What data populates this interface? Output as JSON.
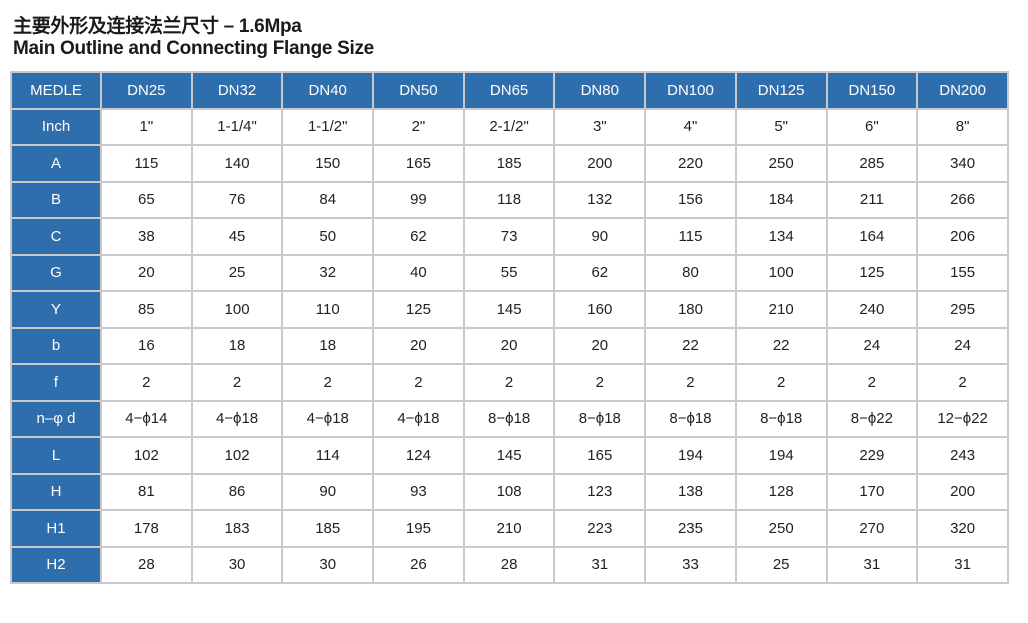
{
  "title_cn": "主要外形及连接法兰尺寸 – 1.6Mpa",
  "title_en": "Main Outline and Connecting Flange Size",
  "colors": {
    "header_bg": "#2f6ead",
    "grid": "#c9c9c9"
  },
  "table": {
    "headers": [
      "MEDLE",
      "DN25",
      "DN32",
      "DN40",
      "DN50",
      "DN65",
      "DN80",
      "DN100",
      "DN125",
      "DN150",
      "DN200"
    ],
    "rows": [
      {
        "label": "Inch",
        "values": [
          "1\"",
          "1-1/4\"",
          "1-1/2\"",
          "2\"",
          "2-1/2\"",
          "3\"",
          "4\"",
          "5\"",
          "6\"",
          "8\""
        ]
      },
      {
        "label": "A",
        "values": [
          "115",
          "140",
          "150",
          "165",
          "185",
          "200",
          "220",
          "250",
          "285",
          "340"
        ]
      },
      {
        "label": "B",
        "values": [
          "65",
          "76",
          "84",
          "99",
          "118",
          "132",
          "156",
          "184",
          "211",
          "266"
        ]
      },
      {
        "label": "C",
        "values": [
          "38",
          "45",
          "50",
          "62",
          "73",
          "90",
          "115",
          "134",
          "164",
          "206"
        ]
      },
      {
        "label": "G",
        "values": [
          "20",
          "25",
          "32",
          "40",
          "55",
          "62",
          "80",
          "100",
          "125",
          "155"
        ]
      },
      {
        "label": "Y",
        "values": [
          "85",
          "100",
          "110",
          "125",
          "145",
          "160",
          "180",
          "210",
          "240",
          "295"
        ]
      },
      {
        "label": "b",
        "values": [
          "16",
          "18",
          "18",
          "20",
          "20",
          "20",
          "22",
          "22",
          "24",
          "24"
        ]
      },
      {
        "label": "f",
        "values": [
          "2",
          "2",
          "2",
          "2",
          "2",
          "2",
          "2",
          "2",
          "2",
          "2"
        ]
      },
      {
        "label": "n–φ d",
        "values": [
          "4−ϕ14",
          "4−ϕ18",
          "4−ϕ18",
          "4−ϕ18",
          "8−ϕ18",
          "8−ϕ18",
          "8−ϕ18",
          "8−ϕ18",
          "8−ϕ22",
          "12−ϕ22"
        ]
      },
      {
        "label": "L",
        "values": [
          "102",
          "102",
          "114",
          "124",
          "145",
          "165",
          "194",
          "194",
          "229",
          "243"
        ]
      },
      {
        "label": "H",
        "values": [
          "81",
          "86",
          "90",
          "93",
          "108",
          "123",
          "138",
          "128",
          "170",
          "200"
        ]
      },
      {
        "label": "H1",
        "values": [
          "178",
          "183",
          "185",
          "195",
          "210",
          "223",
          "235",
          "250",
          "270",
          "320"
        ]
      },
      {
        "label": "H2",
        "values": [
          "28",
          "30",
          "30",
          "26",
          "28",
          "31",
          "33",
          "25",
          "31",
          "31"
        ]
      }
    ]
  }
}
